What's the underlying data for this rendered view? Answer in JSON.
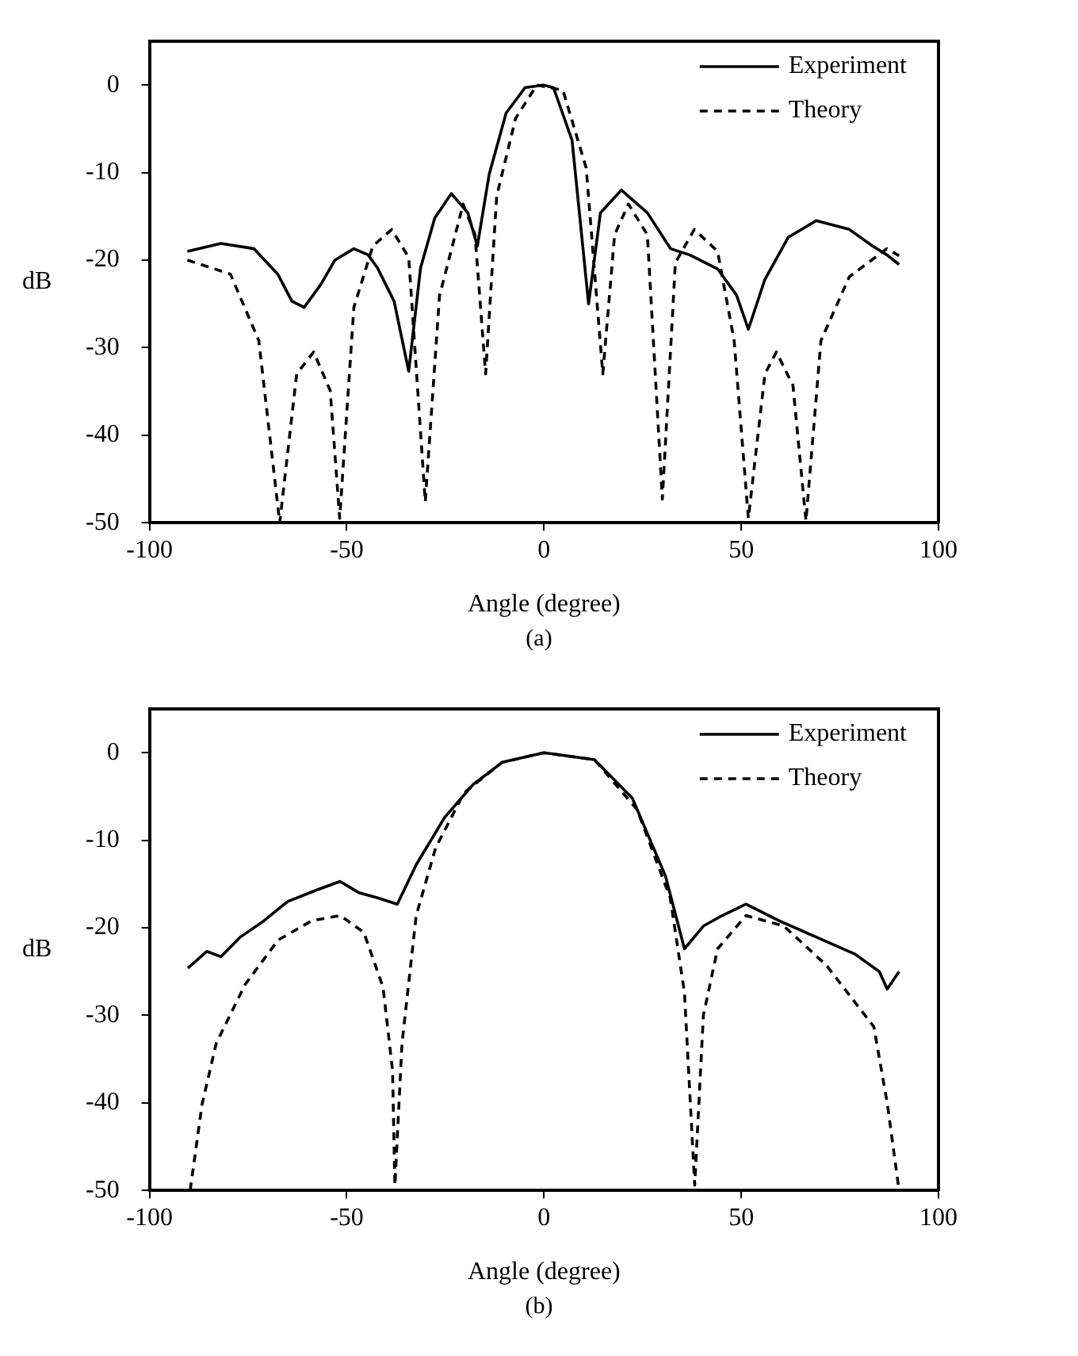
{
  "chart_data": [
    {
      "type": "line",
      "xlabel": "Angle (degree)",
      "ylabel": "dB",
      "annotations": [
        "(a)"
      ],
      "xlim": [
        -100,
        100
      ],
      "xticks": [
        -100,
        -50,
        0,
        50,
        100
      ],
      "ylim": [
        -50,
        5
      ],
      "yticks": [
        -50,
        -40,
        -30,
        -20,
        -10,
        0
      ],
      "grid": false,
      "legend": "top right",
      "marker": "none",
      "series": [
        {
          "name": "Experiment",
          "color": "#000000",
          "line_style": "solid",
          "x": [
            -90.4,
            -81.9,
            -73.5,
            -67.5,
            -63.9,
            -60.8,
            -56.6,
            -53,
            -48.2,
            -44.6,
            -42.2,
            -38,
            -34.3,
            -31.3,
            -27.7,
            -23.5,
            -19.3,
            -16.9,
            -13.9,
            -9.6,
            -4.8,
            -0.2,
            2.4,
            7.1,
            11.3,
            14.3,
            19.6,
            26.2,
            32.1,
            36.9,
            44,
            48.8,
            51.8,
            56,
            61.9,
            69,
            77.4,
            83.3,
            86.9,
            90
          ],
          "values": [
            -19,
            -18.1,
            -18.7,
            -21.6,
            -24.7,
            -25.4,
            -22.8,
            -20,
            -18.7,
            -19.4,
            -20.9,
            -24.7,
            -32.7,
            -20.9,
            -15.2,
            -12.4,
            -14.6,
            -18.4,
            -10.2,
            -3.2,
            -0.3,
            0,
            -0.3,
            -6.3,
            -25,
            -14.6,
            -12,
            -14.6,
            -18.7,
            -19.4,
            -21,
            -24,
            -27.9,
            -22.2,
            -17.4,
            -15.5,
            -16.5,
            -18.4,
            -19.4,
            -20.5
          ]
        },
        {
          "name": "Theory",
          "color": "#000000",
          "line_style": "dashed",
          "x": [
            -90.4,
            -79.5,
            -72.3,
            -67,
            -62.7,
            -58.4,
            -54.2,
            -51.8,
            -48.2,
            -43.4,
            -38.6,
            -34.3,
            -30.1,
            -26.5,
            -20.5,
            -17.5,
            -14.8,
            -12,
            -7.2,
            -1.8,
            4.8,
            10.7,
            14.9,
            17.9,
            21.4,
            26.2,
            30,
            33.3,
            38.1,
            44,
            48.2,
            51.8,
            56,
            58.9,
            63.1,
            66.4,
            70.2,
            77.4,
            86.9,
            90
          ],
          "values": [
            -20,
            -21.6,
            -29.2,
            -50,
            -33,
            -30.5,
            -34.9,
            -49.5,
            -25.4,
            -18.4,
            -16.5,
            -19.7,
            -47.6,
            -24.1,
            -13.6,
            -17.1,
            -33,
            -12.7,
            -3.8,
            0,
            -0.6,
            -9.5,
            -33,
            -17.1,
            -13.6,
            -17.1,
            -47.3,
            -20.3,
            -16.5,
            -19,
            -29.2,
            -49.5,
            -33,
            -30.5,
            -34.3,
            -49.8,
            -29.2,
            -21.9,
            -18.7,
            -19.5
          ]
        }
      ]
    },
    {
      "type": "line",
      "xlabel": "Angle (degree)",
      "ylabel": "dB",
      "annotations": [
        "(b)"
      ],
      "xlim": [
        -100,
        100
      ],
      "xticks": [
        -100,
        -50,
        0,
        50,
        100
      ],
      "ylim": [
        -50,
        5
      ],
      "yticks": [
        -50,
        -40,
        -30,
        -20,
        -10,
        0
      ],
      "grid": false,
      "legend": "top right",
      "marker": "none",
      "series": [
        {
          "name": "Experiment",
          "color": "#000000",
          "line_style": "solid",
          "x": [
            -90.3,
            -85.5,
            -81.9,
            -77.1,
            -71,
            -65,
            -57.7,
            -51.7,
            -46.9,
            -42,
            -37.2,
            -32.4,
            -25.2,
            -17.9,
            -10.6,
            0,
            12.8,
            22.4,
            30.8,
            35.6,
            40.4,
            45.2,
            51.2,
            59.6,
            69.2,
            78.8,
            85,
            87,
            90
          ],
          "values": [
            -24.6,
            -22.7,
            -23.3,
            -21.1,
            -19.2,
            -17,
            -15.7,
            -14.7,
            -16,
            -16.6,
            -17.3,
            -12.8,
            -7.4,
            -3.6,
            -1.1,
            0,
            -0.8,
            -5.2,
            -14.1,
            -22.4,
            -19.8,
            -18.6,
            -17.3,
            -19.2,
            -21.1,
            -23,
            -25,
            -27,
            -25
          ]
        },
        {
          "name": "Theory",
          "color": "#000000",
          "line_style": "dashed",
          "x": [
            -89.7,
            -86.7,
            -83.1,
            -75.8,
            -67.4,
            -58.9,
            -51.7,
            -45.7,
            -40.8,
            -38.4,
            -37.8,
            -36,
            -32.4,
            -27.5,
            -20.3,
            -10.6,
            0,
            12.8,
            23.6,
            32,
            35.6,
            38.2,
            40.4,
            44,
            51.2,
            60.8,
            71.6,
            83.6,
            87,
            90
          ],
          "values": [
            -50,
            -40.2,
            -33.2,
            -26.5,
            -21.4,
            -19.2,
            -18.6,
            -20.5,
            -26.8,
            -36.3,
            -49.4,
            -33.2,
            -18.6,
            -10.9,
            -4.6,
            -1.1,
            0,
            -0.8,
            -6.5,
            -16.6,
            -27.4,
            -49.4,
            -30,
            -22.4,
            -18.6,
            -19.8,
            -24.3,
            -31.3,
            -40,
            -50
          ]
        }
      ]
    }
  ]
}
